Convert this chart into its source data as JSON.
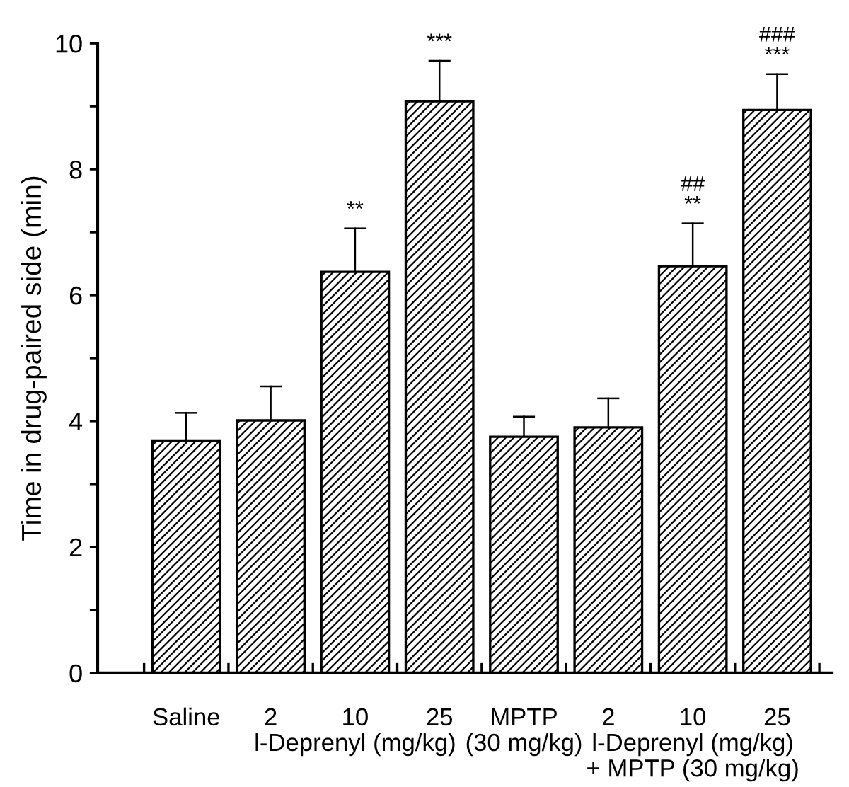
{
  "chart_data": {
    "type": "bar",
    "ylabel": "Time in drug-paired side (min)",
    "categories": [
      "Saline",
      "2",
      "10\nl-Deprenyl (mg/kg)",
      "25",
      "MPTP\n(30 mg/kg)",
      "2",
      "10\nl-Deprenyl (mg/kg)\n+ MPTP (30 mg/kg)",
      "25"
    ],
    "values": [
      3.69,
      4.01,
      6.37,
      9.08,
      3.75,
      3.9,
      6.46,
      8.94
    ],
    "errors": [
      [
        3.69,
        4.13
      ],
      [
        4.01,
        4.55
      ],
      [
        6.37,
        7.06
      ],
      [
        9.08,
        9.72
      ],
      [
        3.75,
        4.07
      ],
      [
        3.9,
        4.36
      ],
      [
        6.46,
        7.14
      ],
      [
        8.94,
        9.51
      ]
    ],
    "value_labels": [
      null,
      null,
      "**",
      "***",
      null,
      null,
      "##\n**",
      "###\n***"
    ],
    "color": "#000000",
    "ylim": [
      0,
      10
    ],
    "yticks": [
      0,
      {
        "value": 1,
        "label": null
      },
      2,
      {
        "value": 3,
        "label": null
      },
      4,
      {
        "value": 5,
        "label": null
      },
      6,
      {
        "value": 7,
        "label": null
      },
      8,
      {
        "value": 9,
        "label": null
      },
      10
    ],
    "grid": false
  }
}
